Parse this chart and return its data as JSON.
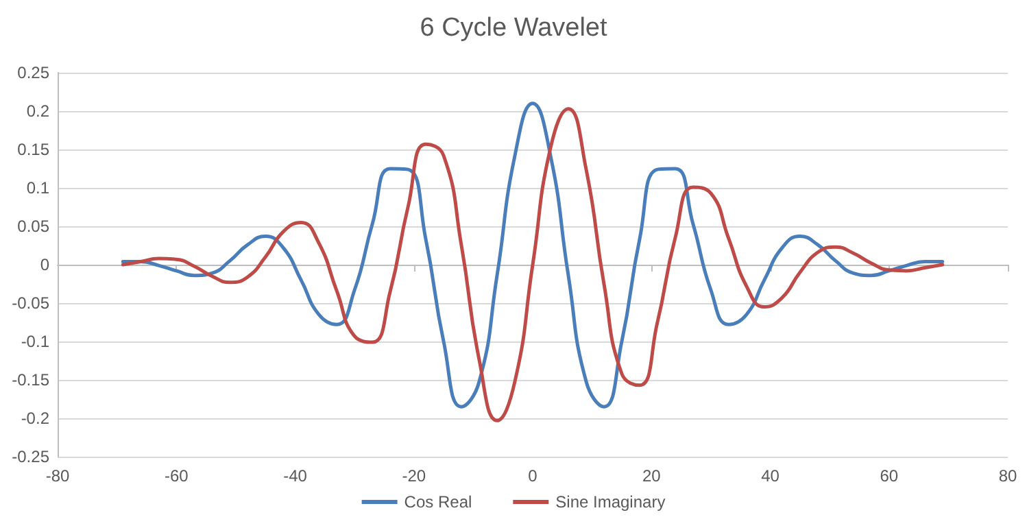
{
  "chart_data": {
    "type": "line",
    "title": "6 Cycle Wavelet",
    "x": [
      -69,
      -66,
      -63,
      -60,
      -57,
      -54,
      -51,
      -48,
      -45,
      -42,
      -39,
      -36,
      -33,
      -30,
      -27,
      -24,
      -21,
      -18,
      -15,
      -12,
      -9,
      -6,
      -3,
      0,
      3,
      6,
      9,
      12,
      15,
      18,
      21,
      24,
      27,
      30,
      33,
      36,
      39,
      42,
      45,
      48,
      51,
      54,
      57,
      60,
      63,
      66,
      69
    ],
    "series": [
      {
        "name": "Cos Real",
        "color": "#4a7ebb",
        "values": [
          0.004,
          0.004,
          -0.001,
          -0.008,
          -0.014,
          -0.011,
          0.005,
          0.026,
          0.037,
          0.022,
          -0.02,
          -0.065,
          -0.078,
          -0.033,
          0.053,
          0.125,
          0.124,
          0.033,
          -0.1,
          -0.185,
          -0.152,
          -0.014,
          0.142,
          0.21,
          0.142,
          -0.014,
          -0.152,
          -0.185,
          -0.1,
          0.033,
          0.124,
          0.125,
          0.053,
          -0.033,
          -0.078,
          -0.065,
          -0.02,
          0.022,
          0.037,
          0.026,
          0.005,
          -0.011,
          -0.014,
          -0.008,
          -0.001,
          0.004,
          0.004
        ]
      },
      {
        "name": "Sine Imaginary",
        "color": "#be4b48",
        "values": [
          0,
          0.004,
          0.008,
          0.007,
          -0.002,
          -0.015,
          -0.023,
          -0.016,
          0.01,
          0.043,
          0.055,
          0.028,
          -0.034,
          -0.093,
          -0.101,
          -0.035,
          0.075,
          0.157,
          0.142,
          0.025,
          -0.124,
          -0.203,
          -0.152,
          0,
          0.152,
          0.203,
          0.124,
          -0.025,
          -0.142,
          -0.157,
          -0.075,
          0.035,
          0.101,
          0.093,
          0.034,
          -0.028,
          -0.055,
          -0.043,
          -0.01,
          0.016,
          0.023,
          0.015,
          0.002,
          -0.007,
          -0.008,
          -0.004,
          0
        ]
      }
    ],
    "xlim": [
      -80,
      80
    ],
    "xticks": [
      -80,
      -60,
      -40,
      -20,
      0,
      20,
      40,
      60,
      80
    ],
    "ylim": [
      -0.25,
      0.25
    ],
    "yticks": [
      -0.25,
      -0.2,
      -0.15,
      -0.1,
      -0.05,
      0,
      0.05,
      0.1,
      0.15,
      0.2,
      0.25
    ],
    "grid": "y",
    "legend": "bottom",
    "marker": "none",
    "line_style": "solid"
  }
}
